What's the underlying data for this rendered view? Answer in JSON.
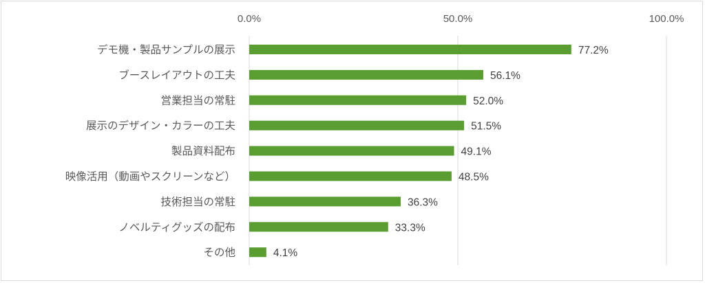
{
  "chart_data": {
    "type": "bar",
    "orientation": "horizontal",
    "title": "",
    "xlabel": "",
    "ylabel": "",
    "xlim": [
      0,
      100
    ],
    "x_ticks": [
      "0.0%",
      "50.0%",
      "100.0%"
    ],
    "x_tick_values": [
      0,
      50,
      100
    ],
    "grid": true,
    "legend": "none",
    "bar_color": "#5a9e32",
    "categories": [
      "デモ機・製品サンプルの展示",
      "ブースレイアウトの工夫",
      "営業担当の常駐",
      "展示のデザイン・カラーの工夫",
      "製品資料配布",
      "映像活用（動画やスクリーンなど）",
      "技術担当の常駐",
      "ノベルティグッズの配布",
      "その他"
    ],
    "values": [
      77.2,
      56.1,
      52.0,
      51.5,
      49.1,
      48.5,
      36.3,
      33.3,
      4.1
    ],
    "value_labels": [
      "77.2%",
      "56.1%",
      "52.0%",
      "51.5%",
      "49.1%",
      "48.5%",
      "36.3%",
      "33.3%",
      "4.1%"
    ]
  }
}
